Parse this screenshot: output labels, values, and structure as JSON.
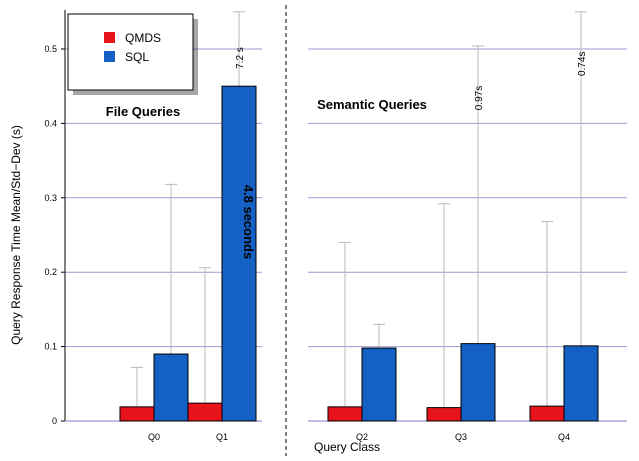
{
  "chart_data": {
    "type": "bar",
    "ylabel": "Query Response Time Mean/Std−Dev (s)",
    "xlabel": "Query Class",
    "ylim": [
      0,
      0.5
    ],
    "yticks": [
      "0",
      "0.1",
      "0.2",
      "0.3",
      "0.4",
      "0.5"
    ],
    "ytick_values": [
      0,
      0.1,
      0.2,
      0.3,
      0.4,
      0.5
    ],
    "grid": true,
    "legend_placement": "top-left",
    "series": [
      {
        "name": "QMDS",
        "color": "#e8141b"
      },
      {
        "name": "SQL",
        "color": "#1560c4"
      }
    ],
    "panels": [
      {
        "title": "File Queries",
        "categories": [
          "Q0",
          "Q1"
        ],
        "groups": [
          {
            "category": "Q0",
            "bars": [
              {
                "series": "QMDS",
                "value": 0.019,
                "error_top": 0.072,
                "label": ""
              },
              {
                "series": "SQL",
                "value": 0.09,
                "error_top": 0.318,
                "label": ""
              }
            ]
          },
          {
            "category": "Q1",
            "bars": [
              {
                "series": "QMDS",
                "value": 0.024,
                "error_top": 0.206,
                "label": ""
              },
              {
                "series": "SQL",
                "value": 0.45,
                "error_top": 0.55,
                "label": "7.2 s",
                "inner_label": "4.8 seconds"
              }
            ]
          }
        ]
      },
      {
        "title": "Semantic Queries",
        "categories": [
          "Q2",
          "Q3",
          "Q4"
        ],
        "groups": [
          {
            "category": "Q2",
            "bars": [
              {
                "series": "QMDS",
                "value": 0.019,
                "error_top": 0.24,
                "label": ""
              },
              {
                "series": "SQL",
                "value": 0.098,
                "error_top": 0.13,
                "label": ""
              }
            ]
          },
          {
            "category": "Q3",
            "bars": [
              {
                "series": "QMDS",
                "value": 0.018,
                "error_top": 0.292,
                "label": ""
              },
              {
                "series": "SQL",
                "value": 0.104,
                "error_top": 0.504,
                "label": "0.97s"
              }
            ]
          },
          {
            "category": "Q4",
            "bars": [
              {
                "series": "QMDS",
                "value": 0.02,
                "error_top": 0.268,
                "label": ""
              },
              {
                "series": "SQL",
                "value": 0.101,
                "error_top": 0.55,
                "label": "0.74s"
              }
            ]
          }
        ]
      }
    ]
  }
}
